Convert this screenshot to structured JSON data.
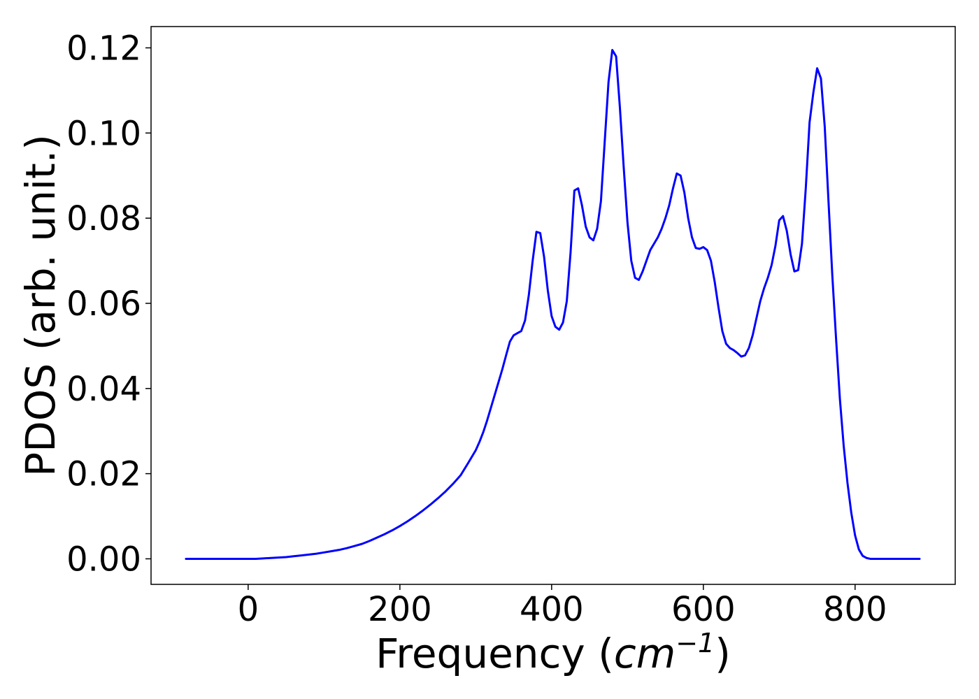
{
  "chart_data": {
    "type": "line",
    "title": "",
    "xlabel": "Frequency",
    "xlabel_unit_open": "(",
    "xlabel_unit_base": "cm",
    "xlabel_unit_exp": "−1",
    "xlabel_unit_close": ")",
    "ylabel": "PDOS (arb. unit.)",
    "xlim": [
      -128,
      932
    ],
    "ylim": [
      -0.006,
      0.125
    ],
    "xticks": [
      0,
      200,
      400,
      600,
      800
    ],
    "xtick_labels": [
      "0",
      "200",
      "400",
      "600",
      "800"
    ],
    "yticks": [
      0.0,
      0.02,
      0.04,
      0.06,
      0.08,
      0.1,
      0.12
    ],
    "ytick_labels": [
      "0.00",
      "0.02",
      "0.04",
      "0.06",
      "0.08",
      "0.10",
      "0.12"
    ],
    "grid": false,
    "line_color": "#0000ff",
    "series": [
      {
        "x": [
          -82,
          -60,
          -40,
          -20,
          0,
          10,
          20,
          30,
          40,
          50,
          60,
          70,
          80,
          90,
          100,
          110,
          120,
          130,
          140,
          150,
          160,
          170,
          180,
          190,
          200,
          210,
          220,
          230,
          240,
          250,
          260,
          270,
          280,
          290,
          300,
          305,
          310,
          315,
          320,
          325,
          330,
          335,
          340,
          345,
          350,
          355,
          360,
          365,
          370,
          375,
          380,
          385,
          390,
          395,
          400,
          405,
          410,
          415,
          420,
          425,
          430,
          435,
          440,
          445,
          450,
          455,
          460,
          465,
          470,
          475,
          480,
          485,
          490,
          495,
          500,
          505,
          510,
          515,
          520,
          525,
          530,
          535,
          540,
          545,
          550,
          555,
          560,
          565,
          570,
          575,
          580,
          585,
          590,
          595,
          600,
          605,
          610,
          615,
          620,
          625,
          630,
          635,
          640,
          645,
          650,
          655,
          660,
          665,
          670,
          675,
          680,
          685,
          690,
          695,
          700,
          705,
          710,
          715,
          720,
          725,
          730,
          735,
          740,
          745,
          750,
          755,
          760,
          765,
          770,
          775,
          780,
          785,
          790,
          795,
          800,
          805,
          810,
          815,
          820,
          825,
          830,
          840,
          860,
          885
        ],
        "y": [
          0.0,
          0.0,
          0.0,
          0.0,
          0.0,
          0.0,
          0.0001,
          0.0002,
          0.0003,
          0.0004,
          0.0006,
          0.0008,
          0.001,
          0.0012,
          0.0015,
          0.0018,
          0.0021,
          0.0025,
          0.003,
          0.0035,
          0.0042,
          0.005,
          0.0058,
          0.0067,
          0.0077,
          0.0088,
          0.01,
          0.0113,
          0.0127,
          0.0142,
          0.0158,
          0.0176,
          0.0196,
          0.0225,
          0.0255,
          0.0275,
          0.0298,
          0.0325,
          0.0355,
          0.0385,
          0.0415,
          0.0445,
          0.0478,
          0.051,
          0.0525,
          0.053,
          0.0535,
          0.056,
          0.062,
          0.07,
          0.0768,
          0.0765,
          0.071,
          0.063,
          0.057,
          0.0545,
          0.0538,
          0.0555,
          0.0605,
          0.072,
          0.0865,
          0.087,
          0.083,
          0.078,
          0.0755,
          0.0748,
          0.0775,
          0.084,
          0.098,
          0.112,
          0.1195,
          0.118,
          0.106,
          0.092,
          0.079,
          0.07,
          0.066,
          0.0655,
          0.0675,
          0.07,
          0.0725,
          0.074,
          0.0755,
          0.0775,
          0.08,
          0.083,
          0.087,
          0.0905,
          0.09,
          0.086,
          0.08,
          0.0755,
          0.073,
          0.0728,
          0.0732,
          0.0725,
          0.07,
          0.065,
          0.059,
          0.0535,
          0.0505,
          0.0495,
          0.049,
          0.0483,
          0.0475,
          0.0478,
          0.0495,
          0.0525,
          0.0565,
          0.0605,
          0.0635,
          0.066,
          0.069,
          0.0735,
          0.0795,
          0.0805,
          0.077,
          0.0715,
          0.0675,
          0.0678,
          0.074,
          0.087,
          0.1025,
          0.1095,
          0.1152,
          0.1128,
          0.1015,
          0.0838,
          0.0665,
          0.0515,
          0.0375,
          0.0265,
          0.0178,
          0.0108,
          0.0055,
          0.0022,
          0.0007,
          0.0002,
          0.0,
          0.0,
          0.0,
          0.0,
          0.0,
          0.0
        ]
      }
    ]
  }
}
